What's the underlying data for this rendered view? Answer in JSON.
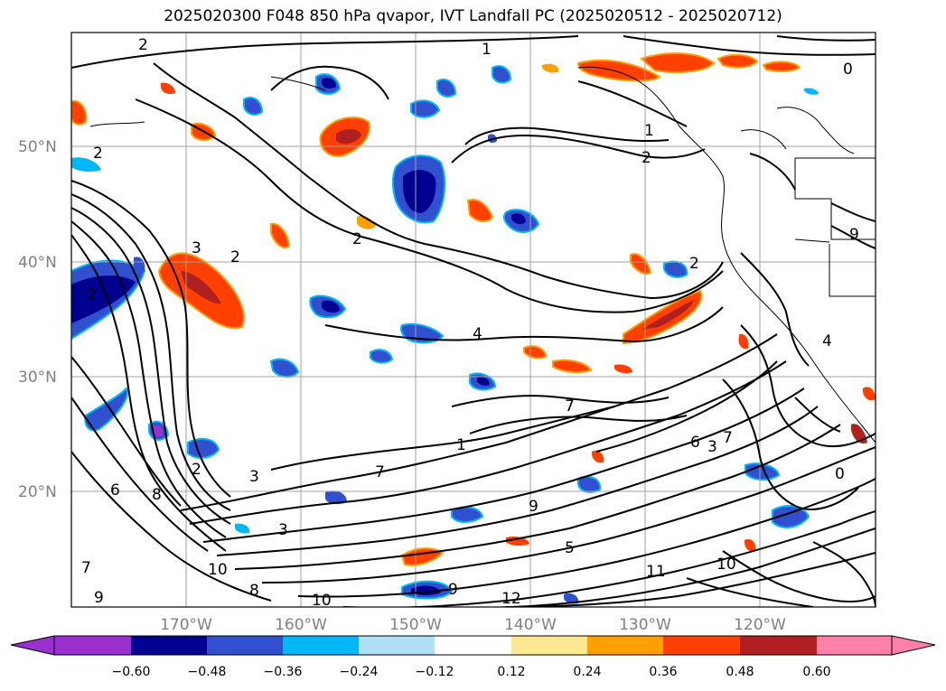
{
  "title": "2025020300 F048 850 hPa qvapor, IVT Landfall PC (2025020512 - 2025020712)",
  "lat_labels": [
    "50°N",
    "40°N",
    "30°N",
    "20°N"
  ],
  "lon_labels": [
    "170°W",
    "160°W",
    "150°W",
    "140°W",
    "130°W",
    "120°W"
  ],
  "colorbar": {
    "ticks": [
      "−0.60",
      "−0.48",
      "−0.36",
      "−0.24",
      "−0.12",
      "0.12",
      "0.24",
      "0.36",
      "0.48",
      "0.60"
    ],
    "colors": [
      "#9b30d0",
      "#000090",
      "#3050d0",
      "#00b8f8",
      "#b0e0f8",
      "#ffffff",
      "#fce890",
      "#ffa000",
      "#ff4000",
      "#b02020",
      "#ff80a8"
    ]
  },
  "contour_labels": [
    "2",
    "1",
    "0",
    "2",
    "2",
    "2",
    "3",
    "2",
    "4",
    "7",
    "7",
    "2",
    "3",
    "6",
    "8",
    "3",
    "9",
    "9",
    "5",
    "10",
    "8",
    "11",
    "10",
    "12",
    "9",
    "7",
    "10",
    "2",
    "4",
    "1",
    "2",
    "0",
    "6",
    "1",
    "3",
    "7",
    "9"
  ]
}
